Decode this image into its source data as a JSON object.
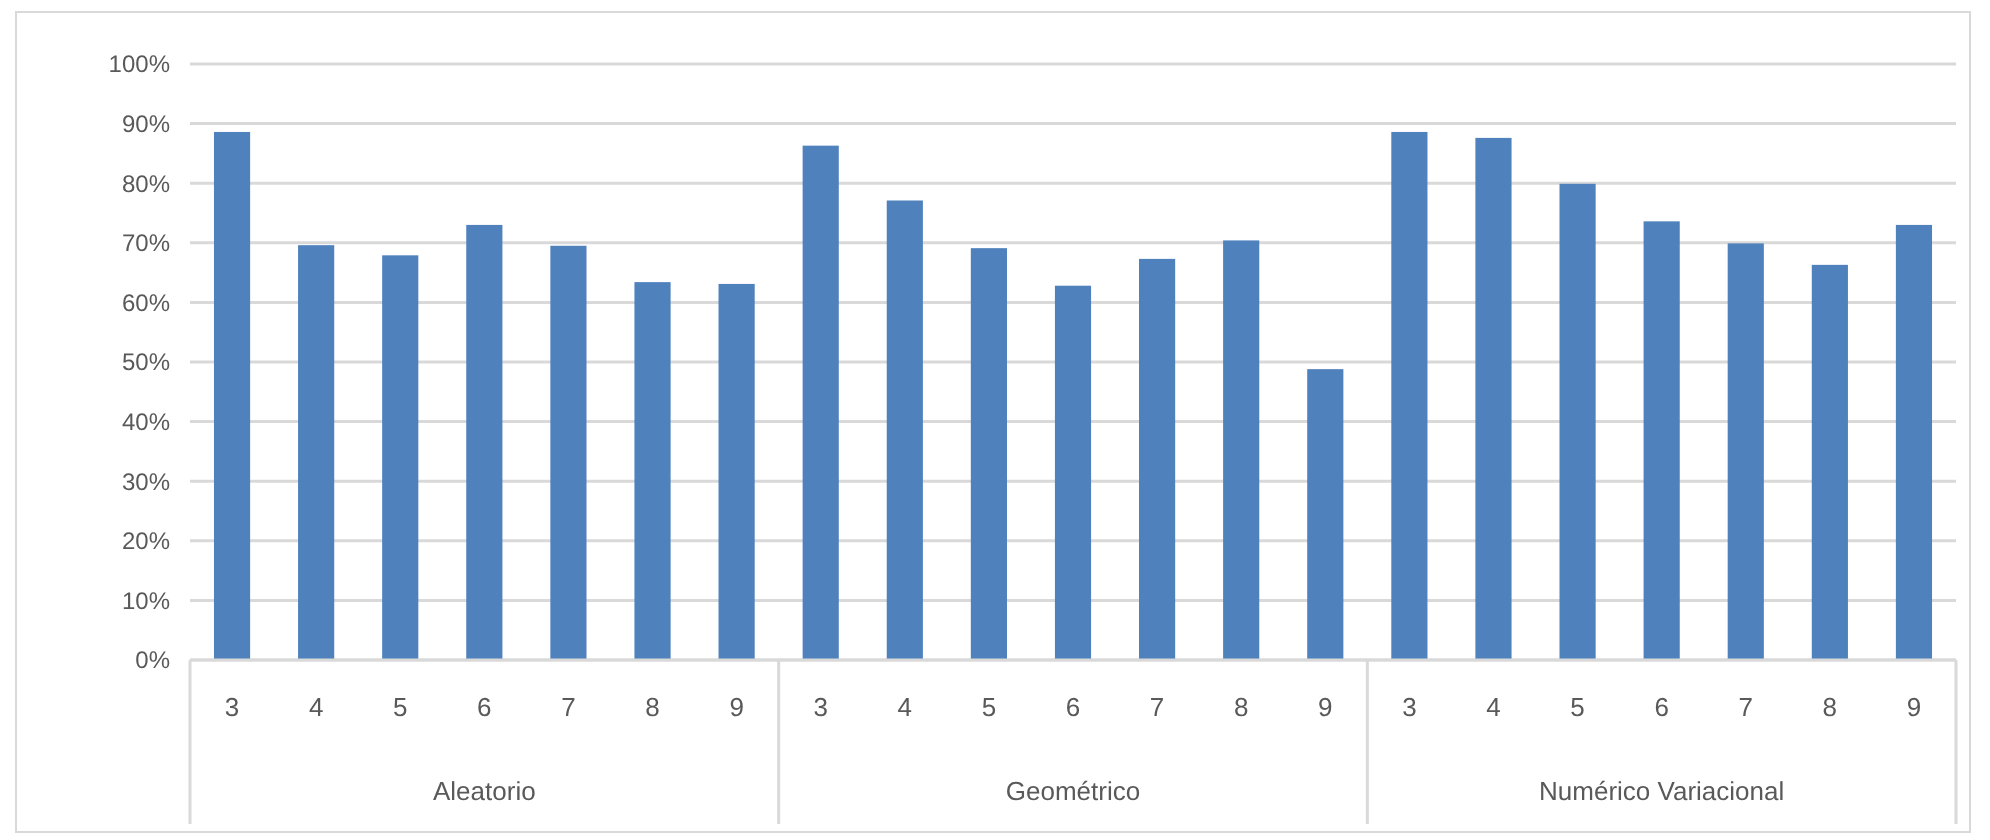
{
  "chart_data": {
    "type": "bar",
    "categories": [
      "3",
      "4",
      "5",
      "6",
      "7",
      "8",
      "9",
      "3",
      "4",
      "5",
      "6",
      "7",
      "8",
      "9",
      "3",
      "4",
      "5",
      "6",
      "7",
      "8",
      "9"
    ],
    "values": [
      88.6,
      69.6,
      67.9,
      73.0,
      69.5,
      63.4,
      63.1,
      86.3,
      77.1,
      69.1,
      62.8,
      67.3,
      70.4,
      48.8,
      88.6,
      87.6,
      79.9,
      73.6,
      69.9,
      66.3,
      73.0
    ],
    "color": "#4f81bd",
    "ylim": [
      0,
      100
    ],
    "yticks": [
      {
        "value": 0,
        "label": "0%"
      },
      {
        "value": 10,
        "label": "10%"
      },
      {
        "value": 20,
        "label": "20%"
      },
      {
        "value": 30,
        "label": "30%"
      },
      {
        "value": 40,
        "label": "40%"
      },
      {
        "value": 50,
        "label": "50%"
      },
      {
        "value": 60,
        "label": "60%"
      },
      {
        "value": 70,
        "label": "70%"
      },
      {
        "value": 80,
        "label": "80%"
      },
      {
        "value": 90,
        "label": "90%"
      },
      {
        "value": 100,
        "label": "100%"
      }
    ],
    "grid": "y",
    "annotations": [
      "Aleatorio",
      "Geométrico",
      "Numérico Variacional"
    ]
  }
}
